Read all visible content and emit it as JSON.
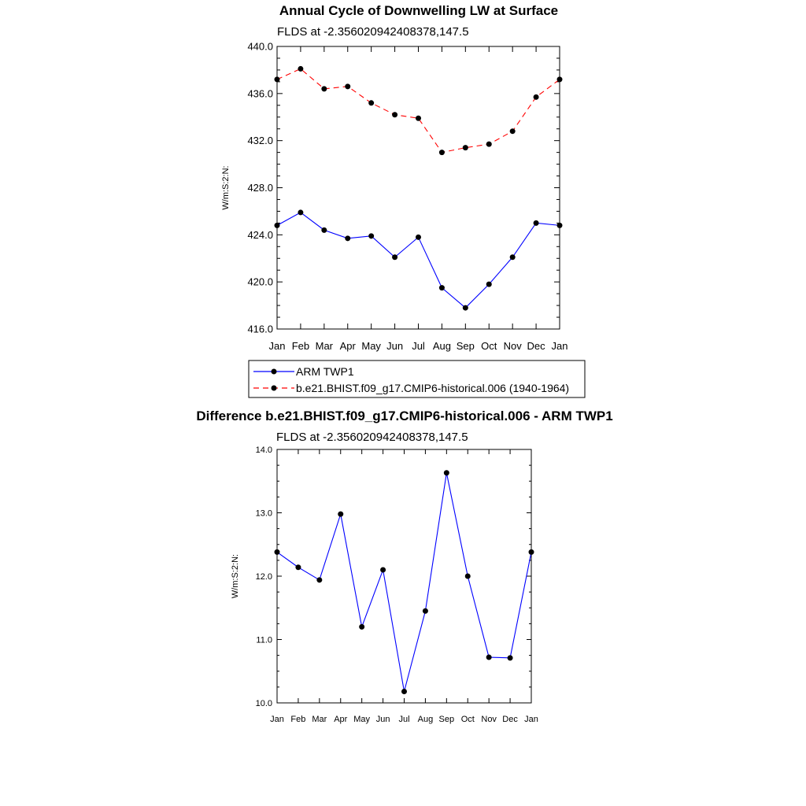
{
  "chart_data": [
    {
      "type": "line",
      "title": "Annual Cycle of Downwelling LW at Surface",
      "subtitle": "FLDS at -2.356020942408378,147.5",
      "ylabel": "W/m:S:2:N:",
      "xlabel": "",
      "categories": [
        "Jan",
        "Feb",
        "Mar",
        "Apr",
        "May",
        "Jun",
        "Jul",
        "Aug",
        "Sep",
        "Oct",
        "Nov",
        "Dec",
        "Jan"
      ],
      "ylim": [
        416.0,
        440.0
      ],
      "yticks": [
        "416.0",
        "420.0",
        "424.0",
        "428.0",
        "432.0",
        "436.0",
        "440.0"
      ],
      "series": [
        {
          "name": "ARM TWP1",
          "color": "#0000ff",
          "dash": "solid",
          "values": [
            424.8,
            425.9,
            424.4,
            423.7,
            423.9,
            422.1,
            423.8,
            419.5,
            417.8,
            419.8,
            422.1,
            425.0,
            424.8
          ]
        },
        {
          "name": "b.e21.BHIST.f09_g17.CMIP6-historical.006 (1940-1964)",
          "color": "#ff0000",
          "dash": "dashed",
          "values": [
            437.2,
            438.1,
            436.4,
            436.6,
            435.2,
            434.2,
            433.9,
            431.0,
            431.4,
            431.7,
            432.8,
            435.7,
            437.2
          ]
        }
      ],
      "legend": "below"
    },
    {
      "type": "line",
      "title": "Difference b.e21.BHIST.f09_g17.CMIP6-historical.006 - ARM TWP1",
      "subtitle": "FLDS at -2.356020942408378,147.5",
      "ylabel": "W/m:S:2:N:",
      "xlabel": "",
      "categories": [
        "Jan",
        "Feb",
        "Mar",
        "Apr",
        "May",
        "Jun",
        "Jul",
        "Aug",
        "Sep",
        "Oct",
        "Nov",
        "Dec",
        "Jan"
      ],
      "ylim": [
        10.0,
        14.0
      ],
      "yticks": [
        "10.0",
        "11.0",
        "12.0",
        "13.0",
        "14.0"
      ],
      "series": [
        {
          "name": "Difference",
          "color": "#0000ff",
          "dash": "solid",
          "values": [
            12.38,
            12.14,
            11.94,
            12.98,
            11.2,
            12.1,
            10.18,
            11.45,
            13.63,
            12.0,
            10.72,
            10.71,
            12.38
          ]
        }
      ]
    }
  ]
}
